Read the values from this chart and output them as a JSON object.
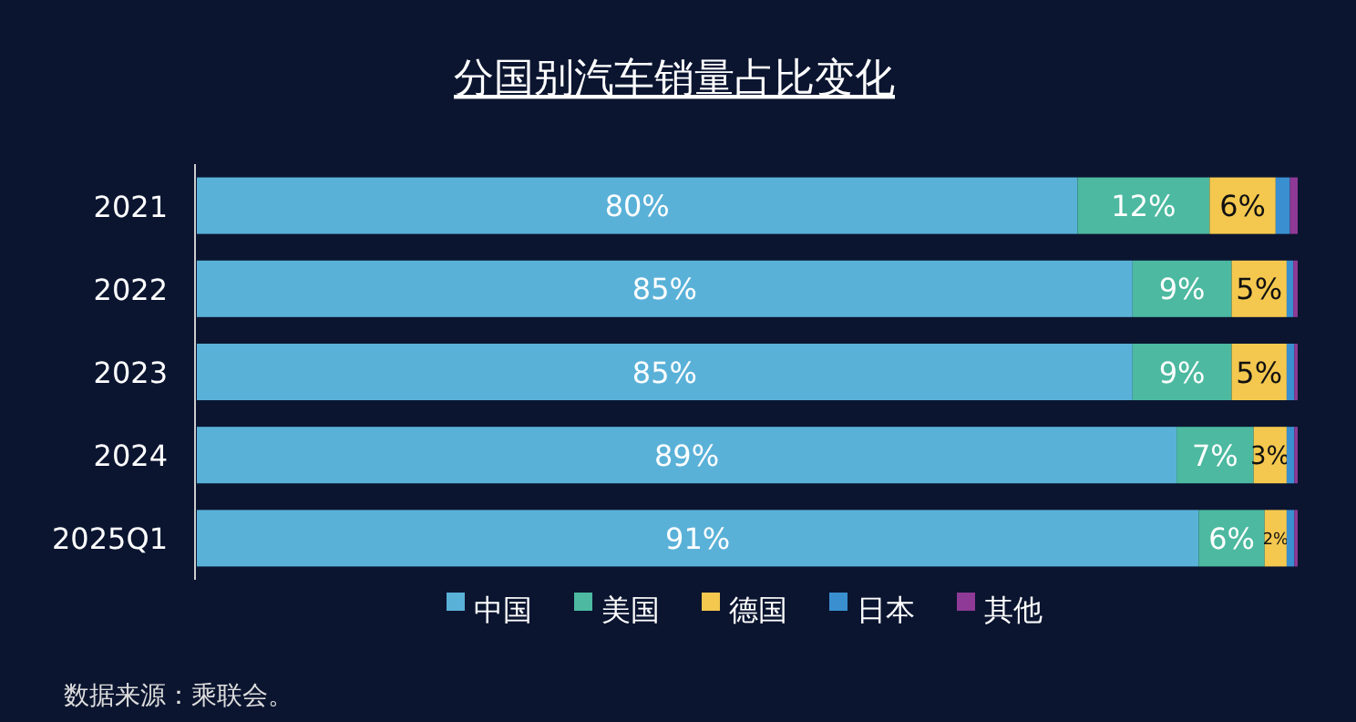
{
  "chart_data": {
    "type": "bar",
    "title": "分国别汽车销量占比变化",
    "orientation": "horizontal",
    "stacked": true,
    "categories": [
      "2021",
      "2022",
      "2023",
      "2024",
      "2025Q1"
    ],
    "xlim": [
      0,
      100
    ],
    "tick_labels": "y",
    "legend": "bottom",
    "series": [
      {
        "name": "中国",
        "color": "#5ab1d8",
        "values": [
          80,
          85,
          85,
          89,
          91
        ],
        "value_labels": [
          "80%",
          "85%",
          "85%",
          "89%",
          "91%"
        ]
      },
      {
        "name": "美国",
        "color": "#4cb9a0",
        "values": [
          12,
          9,
          9,
          7,
          6
        ],
        "value_labels": [
          "12%",
          "9%",
          "9%",
          "7%",
          "6%"
        ]
      },
      {
        "name": "德国",
        "color": "#f4c84f",
        "values": [
          6,
          5,
          5,
          3,
          2
        ],
        "value_labels": [
          "6%",
          "5%",
          "5%",
          "3%",
          "2%"
        ]
      },
      {
        "name": "日本",
        "color": "#3a8fd0",
        "values": [
          1.3,
          0.6,
          0.7,
          0.7,
          0.7
        ]
      },
      {
        "name": "其他",
        "color": "#8e3a96",
        "values": [
          0.7,
          0.4,
          0.3,
          0.3,
          0.3
        ]
      }
    ],
    "annotations": [
      "数据来源：乘联会。"
    ]
  }
}
